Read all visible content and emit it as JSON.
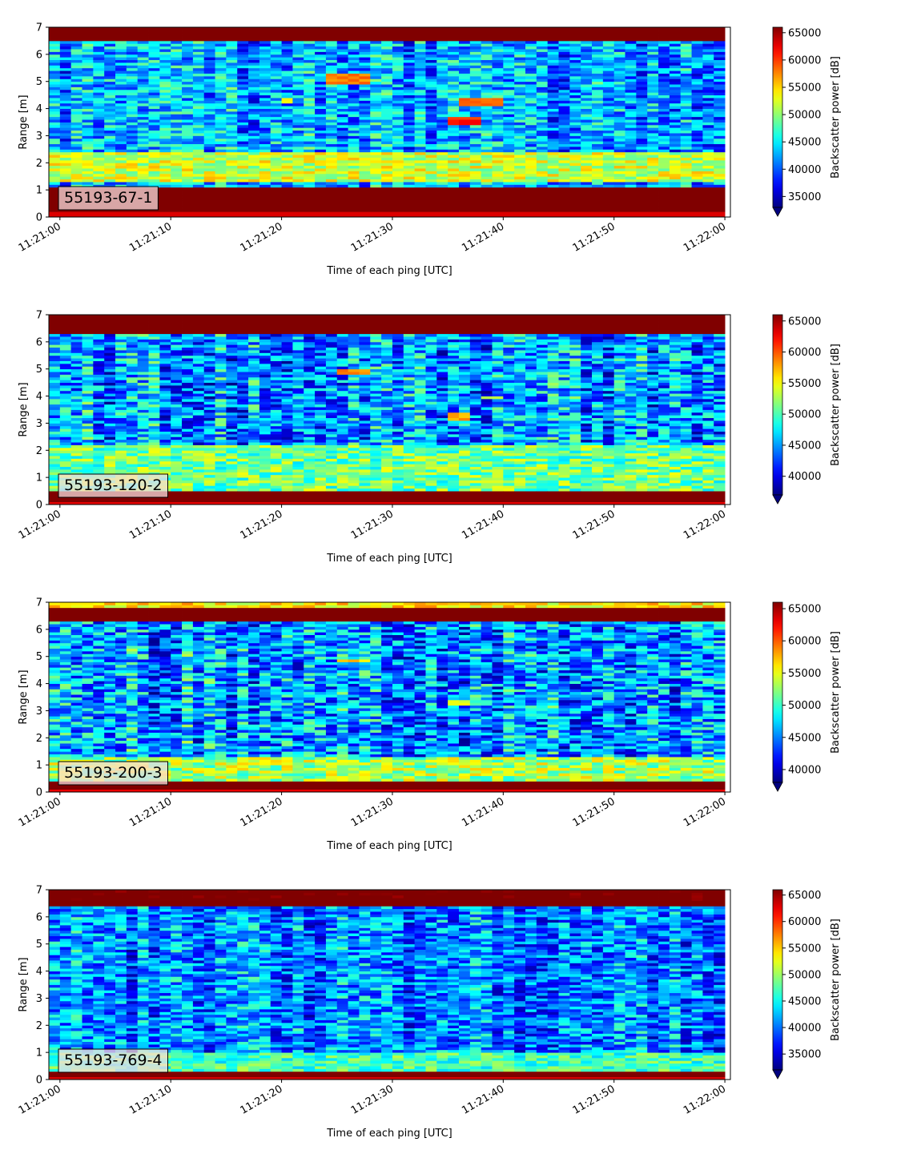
{
  "chart_data": [
    {
      "type": "heatmap",
      "label": "55193-67-1",
      "xlabel": "Time of each ping [UTC]",
      "ylabel": "Range [m]",
      "xticks": [
        "11:21:00",
        "11:21:10",
        "11:21:20",
        "11:21:30",
        "11:21:40",
        "11:21:50",
        "11:22:00"
      ],
      "xlim": [
        "11:20:59",
        "11:22:00.5"
      ],
      "yticks": [
        0,
        1,
        2,
        3,
        4,
        5,
        6,
        7
      ],
      "ylim": [
        0,
        7
      ],
      "colorbar": {
        "label": "Backscatter power [dB]",
        "ticks": [
          35000,
          40000,
          45000,
          50000,
          55000,
          60000,
          65000
        ],
        "range": [
          33000,
          66000
        ],
        "extend": "min",
        "colormap": "jet"
      },
      "features": {
        "bottom_band": [
          0.2,
          1.1
        ],
        "top_band": [
          6.5,
          7.0
        ],
        "near_bottom_layer": {
          "range": [
            1.3,
            2.4
          ],
          "level": 52000
        },
        "background_level": 42500,
        "targets": [
          {
            "t": [
              24,
              28
            ],
            "r": [
              4.95,
              5.3
            ],
            "level": 58000
          },
          {
            "t": [
              34.5,
              37.5
            ],
            "r": [
              3.35,
              3.75
            ],
            "level": 61000
          },
          {
            "t": [
              35.5,
              40
            ],
            "r": [
              4.1,
              4.4
            ],
            "level": 58000
          },
          {
            "t": [
              19.5,
              20.5
            ],
            "r": [
              4.2,
              4.45
            ],
            "level": 54000
          }
        ]
      }
    },
    {
      "type": "heatmap",
      "label": "55193-120-2",
      "xlabel": "Time of each ping [UTC]",
      "ylabel": "Range [m]",
      "xticks": [
        "11:21:00",
        "11:21:10",
        "11:21:20",
        "11:21:30",
        "11:21:40",
        "11:21:50",
        "11:22:00"
      ],
      "xlim": [
        "11:20:59",
        "11:22:00.5"
      ],
      "yticks": [
        0,
        1,
        2,
        3,
        4,
        5,
        6,
        7
      ],
      "ylim": [
        0,
        7
      ],
      "colorbar": {
        "label": "Backscatter power [dB]",
        "ticks": [
          40000,
          45000,
          50000,
          55000,
          60000,
          65000
        ],
        "range": [
          37000,
          66000
        ],
        "extend": "min",
        "colormap": "jet"
      },
      "features": {
        "bottom_band": [
          0.1,
          0.55
        ],
        "top_band": [
          6.35,
          7.0
        ],
        "near_bottom_layer": {
          "range": [
            0.55,
            2.2
          ],
          "level": 51000
        },
        "background_level": 45000,
        "targets": [
          {
            "t": [
              24.5,
              27.5
            ],
            "r": [
              4.8,
              5.0
            ],
            "level": 58000
          },
          {
            "t": [
              34.5,
              37
            ],
            "r": [
              3.15,
              3.35
            ],
            "level": 58000
          },
          {
            "t": [
              37.5,
              40
            ],
            "r": [
              3.9,
              4.05
            ],
            "level": 53000
          }
        ]
      }
    },
    {
      "type": "heatmap",
      "label": "55193-200-3",
      "xlabel": "Time of each ping [UTC]",
      "ylabel": "Range [m]",
      "xticks": [
        "11:21:00",
        "11:21:10",
        "11:21:20",
        "11:21:30",
        "11:21:40",
        "11:21:50",
        "11:22:00"
      ],
      "xlim": [
        "11:20:59",
        "11:22:00.5"
      ],
      "yticks": [
        0,
        1,
        2,
        3,
        4,
        5,
        6,
        7
      ],
      "ylim": [
        0,
        7
      ],
      "colorbar": {
        "label": "Backscatter power [dB]",
        "ticks": [
          40000,
          45000,
          50000,
          55000,
          60000,
          65000
        ],
        "range": [
          38000,
          66000
        ],
        "extend": "min",
        "colormap": "jet"
      },
      "features": {
        "bottom_band": [
          0.15,
          0.45
        ],
        "top_band": [
          6.35,
          6.8
        ],
        "top_edge_level": 56000,
        "near_bottom_layer": {
          "range": [
            0.45,
            1.3
          ],
          "level": 53000
        },
        "background_level": 46000,
        "targets": [
          {
            "t": [
              24.5,
              27.5
            ],
            "r": [
              4.8,
              4.95
            ],
            "level": 57000
          },
          {
            "t": [
              34.5,
              37
            ],
            "r": [
              3.25,
              3.38
            ],
            "level": 55000
          },
          {
            "t": [
              37.5,
              40
            ],
            "r": [
              3.85,
              3.98
            ],
            "level": 51000
          }
        ]
      }
    },
    {
      "type": "heatmap",
      "label": "55193-769-4",
      "xlabel": "Time of each ping [UTC]",
      "ylabel": "Range [m]",
      "xticks": [
        "11:21:00",
        "11:21:10",
        "11:21:20",
        "11:21:30",
        "11:21:40",
        "11:21:50",
        "11:22:00"
      ],
      "xlim": [
        "11:20:59",
        "11:22:00.5"
      ],
      "yticks": [
        0,
        1,
        2,
        3,
        4,
        5,
        6,
        7
      ],
      "ylim": [
        0,
        7
      ],
      "colorbar": {
        "label": "Backscatter power [dB]",
        "ticks": [
          35000,
          40000,
          45000,
          50000,
          55000,
          60000,
          65000
        ],
        "range": [
          32000,
          66000
        ],
        "extend": "min",
        "colormap": "jet"
      },
      "features": {
        "bottom_band": [
          0.15,
          0.3
        ],
        "top_band": [
          6.4,
          6.6
        ],
        "near_bottom_layer": {
          "range": [
            0.3,
            1.0
          ],
          "level": 47000
        },
        "background_level": 40500,
        "targets": []
      }
    }
  ]
}
